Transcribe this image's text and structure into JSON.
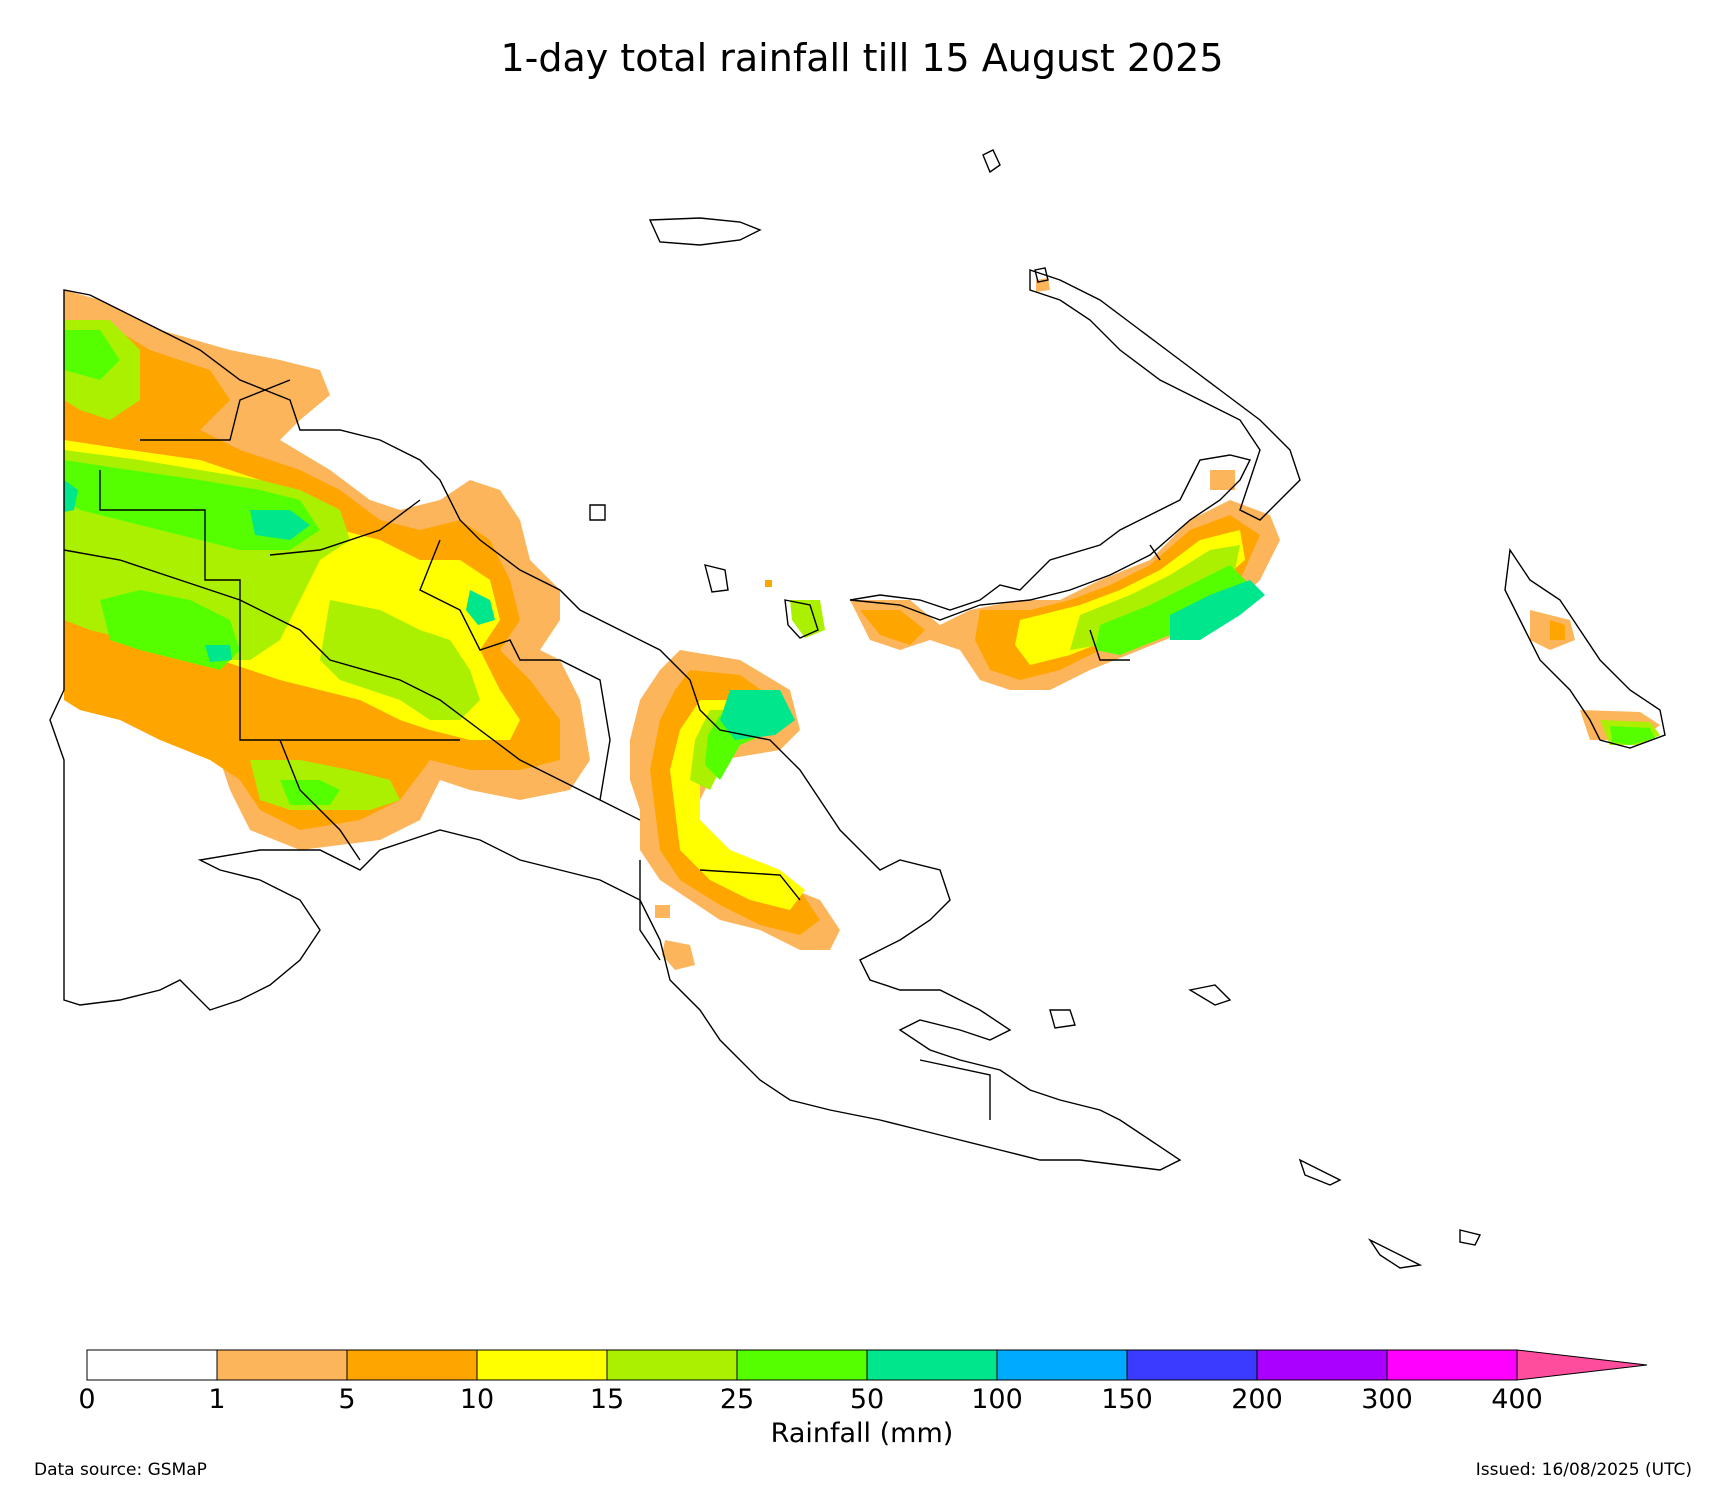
{
  "title": "1-day total rainfall till 15 August 2025",
  "colorbar": {
    "label": "Rainfall (mm)",
    "ticks": [
      "0",
      "1",
      "5",
      "10",
      "15",
      "25",
      "50",
      "100",
      "150",
      "200",
      "300",
      "400"
    ],
    "colors": [
      "#ffffff",
      "#fdb55c",
      "#ffa500",
      "#ffff00",
      "#aaf000",
      "#55ff00",
      "#00e68c",
      "#00aaff",
      "#3b3bff",
      "#aa00ff",
      "#ff00ff"
    ],
    "extend_color": "#ff4d9d"
  },
  "footer": {
    "source": "Data source: GSMaP",
    "issued": "Issued: 16/08/2025 (UTC)"
  },
  "colors": {
    "r1": "#fdb55c",
    "r5": "#ffa500",
    "r10": "#ffff00",
    "r15": "#aaf000",
    "r25": "#55ff00",
    "r50": "#00e68c"
  }
}
